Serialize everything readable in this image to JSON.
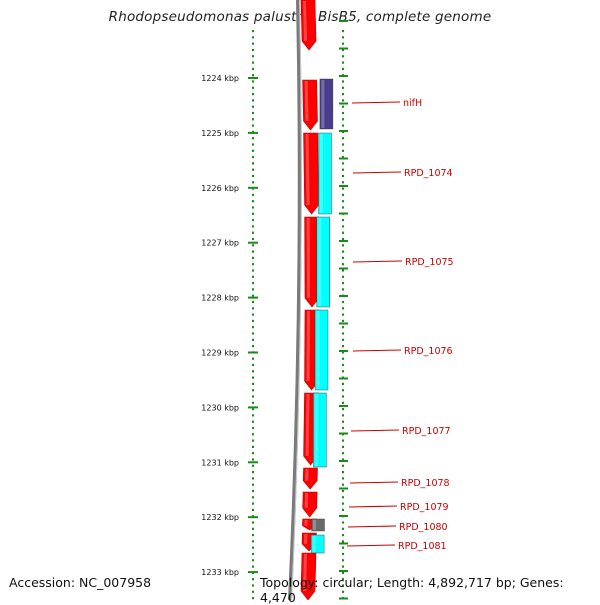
{
  "title": "Rhodopseudomonas palustris BisB5, complete genome",
  "accession_text": "Accession: NC_007958",
  "summary_text": "Topology: circular; Length: 4,892,717 bp; Genes: 4,470",
  "colors": {
    "gene_red": "#ff0000",
    "gene_dark": "#c00000",
    "nif_blue": "#4a3c8c",
    "cyan": "#00ffff",
    "gray_small": "#6a6a6a",
    "backbone": "#7a7a7a",
    "ruler": "#1a8a1a",
    "label": "#cc0000"
  },
  "ruler": {
    "unit": "kbp",
    "ticks": [
      1224,
      1225,
      1226,
      1227,
      1228,
      1229,
      1230,
      1231,
      1232,
      1233
    ],
    "tick_labels": [
      "1224 kbp",
      "1225 kbp",
      "1226 kbp",
      "1227 kbp",
      "1228 kbp",
      "1229 kbp",
      "1230 kbp",
      "1231 kbp",
      "1232 kbp",
      "1233 kbp"
    ]
  },
  "genes": [
    {
      "name": "nifH",
      "label": "nifH"
    },
    {
      "name": "RPD_1074",
      "label": "RPD_1074"
    },
    {
      "name": "RPD_1075",
      "label": "RPD_1075"
    },
    {
      "name": "RPD_1076",
      "label": "RPD_1076"
    },
    {
      "name": "RPD_1077",
      "label": "RPD_1077"
    },
    {
      "name": "RPD_1078",
      "label": "RPD_1078"
    },
    {
      "name": "RPD_1079",
      "label": "RPD_1079"
    },
    {
      "name": "RPD_1080",
      "label": "RPD_1080"
    },
    {
      "name": "RPD_1081",
      "label": "RPD_1081"
    }
  ]
}
